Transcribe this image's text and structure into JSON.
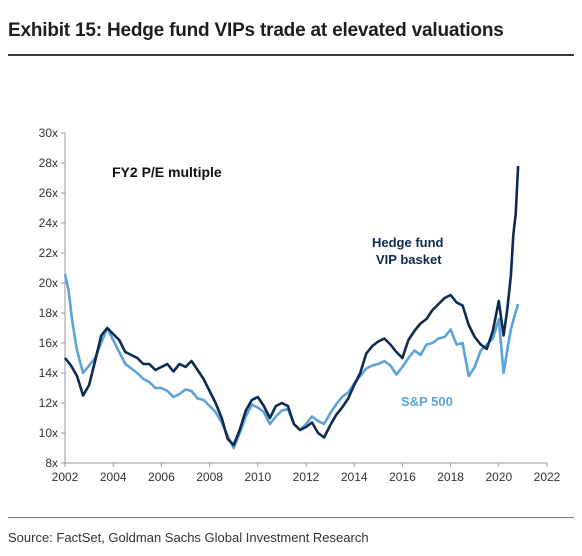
{
  "title": "Exhibit 15: Hedge fund VIPs trade at elevated valuations",
  "source": "Source: FactSet, Goldman Sachs Global Investment Research",
  "chart_data": {
    "type": "line",
    "title": "",
    "xlabel": "",
    "ylabel": "",
    "xlim": [
      2002,
      2022
    ],
    "ylim": [
      8,
      30
    ],
    "x_ticks": [
      "2002",
      "2004",
      "2006",
      "2008",
      "2010",
      "2012",
      "2014",
      "2016",
      "2018",
      "2020",
      "2022"
    ],
    "y_ticks": [
      "8x",
      "10x",
      "12x",
      "14x",
      "16x",
      "18x",
      "20x",
      "22x",
      "24x",
      "26x",
      "28x",
      "30x"
    ],
    "grid": false,
    "annotations": [
      "FY2 P/E multiple",
      "Hedge fund",
      "VIP basket",
      "S&P 500"
    ],
    "colors": {
      "hf": "#0d2a52",
      "sp": "#5ba3d9"
    },
    "series": [
      {
        "name": "Hedge fund VIP basket",
        "points": [
          [
            2002.0,
            15.0
          ],
          [
            2002.25,
            14.5
          ],
          [
            2002.5,
            13.8
          ],
          [
            2002.75,
            12.5
          ],
          [
            2003.0,
            13.2
          ],
          [
            2003.25,
            14.8
          ],
          [
            2003.5,
            16.5
          ],
          [
            2003.75,
            17.0
          ],
          [
            2004.0,
            16.6
          ],
          [
            2004.25,
            16.2
          ],
          [
            2004.5,
            15.4
          ],
          [
            2004.75,
            15.2
          ],
          [
            2005.0,
            15.0
          ],
          [
            2005.25,
            14.6
          ],
          [
            2005.5,
            14.6
          ],
          [
            2005.75,
            14.2
          ],
          [
            2006.0,
            14.4
          ],
          [
            2006.25,
            14.6
          ],
          [
            2006.5,
            14.1
          ],
          [
            2006.75,
            14.6
          ],
          [
            2007.0,
            14.4
          ],
          [
            2007.25,
            14.8
          ],
          [
            2007.5,
            14.2
          ],
          [
            2007.75,
            13.6
          ],
          [
            2008.0,
            12.8
          ],
          [
            2008.25,
            12.0
          ],
          [
            2008.5,
            11.0
          ],
          [
            2008.75,
            9.6
          ],
          [
            2009.0,
            9.2
          ],
          [
            2009.25,
            10.2
          ],
          [
            2009.5,
            11.5
          ],
          [
            2009.75,
            12.2
          ],
          [
            2010.0,
            12.4
          ],
          [
            2010.25,
            11.8
          ],
          [
            2010.5,
            11.0
          ],
          [
            2010.75,
            11.8
          ],
          [
            2011.0,
            12.0
          ],
          [
            2011.25,
            11.8
          ],
          [
            2011.5,
            10.6
          ],
          [
            2011.75,
            10.2
          ],
          [
            2012.0,
            10.4
          ],
          [
            2012.25,
            10.7
          ],
          [
            2012.5,
            10.0
          ],
          [
            2012.75,
            9.7
          ],
          [
            2013.0,
            10.5
          ],
          [
            2013.25,
            11.2
          ],
          [
            2013.5,
            11.7
          ],
          [
            2013.75,
            12.3
          ],
          [
            2014.0,
            13.2
          ],
          [
            2014.25,
            14.0
          ],
          [
            2014.5,
            15.3
          ],
          [
            2014.75,
            15.8
          ],
          [
            2015.0,
            16.1
          ],
          [
            2015.25,
            16.3
          ],
          [
            2015.5,
            15.9
          ],
          [
            2015.75,
            15.4
          ],
          [
            2016.0,
            15.0
          ],
          [
            2016.25,
            16.2
          ],
          [
            2016.5,
            16.8
          ],
          [
            2016.75,
            17.3
          ],
          [
            2017.0,
            17.6
          ],
          [
            2017.25,
            18.2
          ],
          [
            2017.5,
            18.6
          ],
          [
            2017.75,
            19.0
          ],
          [
            2018.0,
            19.2
          ],
          [
            2018.25,
            18.7
          ],
          [
            2018.5,
            18.5
          ],
          [
            2018.75,
            17.2
          ],
          [
            2019.0,
            16.4
          ],
          [
            2019.25,
            15.9
          ],
          [
            2019.5,
            15.6
          ],
          [
            2019.75,
            16.8
          ],
          [
            2020.0,
            18.8
          ],
          [
            2020.2,
            16.5
          ],
          [
            2020.35,
            18.2
          ],
          [
            2020.5,
            20.5
          ],
          [
            2020.6,
            23.2
          ],
          [
            2020.7,
            24.6
          ],
          [
            2020.8,
            27.8
          ]
        ]
      },
      {
        "name": "S&P 500",
        "points": [
          [
            2002.0,
            20.6
          ],
          [
            2002.15,
            19.5
          ],
          [
            2002.3,
            17.5
          ],
          [
            2002.5,
            15.5
          ],
          [
            2002.75,
            14.0
          ],
          [
            2003.0,
            14.5
          ],
          [
            2003.25,
            15.0
          ],
          [
            2003.5,
            16.0
          ],
          [
            2003.75,
            17.0
          ],
          [
            2004.0,
            16.2
          ],
          [
            2004.25,
            15.4
          ],
          [
            2004.5,
            14.6
          ],
          [
            2004.75,
            14.3
          ],
          [
            2005.0,
            14.0
          ],
          [
            2005.25,
            13.6
          ],
          [
            2005.5,
            13.4
          ],
          [
            2005.75,
            13.0
          ],
          [
            2006.0,
            13.0
          ],
          [
            2006.25,
            12.8
          ],
          [
            2006.5,
            12.4
          ],
          [
            2006.75,
            12.6
          ],
          [
            2007.0,
            12.9
          ],
          [
            2007.25,
            12.8
          ],
          [
            2007.5,
            12.3
          ],
          [
            2007.75,
            12.2
          ],
          [
            2008.0,
            11.8
          ],
          [
            2008.25,
            11.4
          ],
          [
            2008.5,
            10.7
          ],
          [
            2008.75,
            9.8
          ],
          [
            2009.0,
            9.0
          ],
          [
            2009.25,
            10.0
          ],
          [
            2009.5,
            11.1
          ],
          [
            2009.75,
            11.9
          ],
          [
            2010.0,
            11.7
          ],
          [
            2010.25,
            11.4
          ],
          [
            2010.5,
            10.6
          ],
          [
            2010.75,
            11.1
          ],
          [
            2011.0,
            11.5
          ],
          [
            2011.25,
            11.6
          ],
          [
            2011.5,
            10.6
          ],
          [
            2011.75,
            10.2
          ],
          [
            2012.0,
            10.6
          ],
          [
            2012.25,
            11.1
          ],
          [
            2012.5,
            10.8
          ],
          [
            2012.75,
            10.6
          ],
          [
            2013.0,
            11.3
          ],
          [
            2013.25,
            11.9
          ],
          [
            2013.5,
            12.4
          ],
          [
            2013.75,
            12.7
          ],
          [
            2014.0,
            13.3
          ],
          [
            2014.25,
            13.8
          ],
          [
            2014.5,
            14.3
          ],
          [
            2014.75,
            14.5
          ],
          [
            2015.0,
            14.6
          ],
          [
            2015.25,
            14.8
          ],
          [
            2015.5,
            14.5
          ],
          [
            2015.75,
            13.9
          ],
          [
            2016.0,
            14.4
          ],
          [
            2016.25,
            15.0
          ],
          [
            2016.5,
            15.5
          ],
          [
            2016.75,
            15.2
          ],
          [
            2017.0,
            15.9
          ],
          [
            2017.25,
            16.0
          ],
          [
            2017.5,
            16.3
          ],
          [
            2017.75,
            16.4
          ],
          [
            2018.0,
            16.9
          ],
          [
            2018.25,
            15.9
          ],
          [
            2018.5,
            16.0
          ],
          [
            2018.75,
            13.8
          ],
          [
            2019.0,
            14.4
          ],
          [
            2019.25,
            15.5
          ],
          [
            2019.5,
            15.9
          ],
          [
            2019.75,
            16.3
          ],
          [
            2020.0,
            17.6
          ],
          [
            2020.2,
            14.0
          ],
          [
            2020.35,
            15.5
          ],
          [
            2020.5,
            16.9
          ],
          [
            2020.65,
            17.8
          ],
          [
            2020.8,
            18.6
          ]
        ]
      }
    ]
  }
}
